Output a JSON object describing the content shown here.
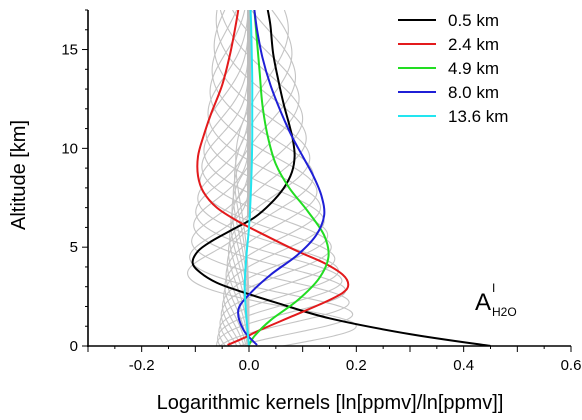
{
  "chart_data": {
    "type": "line",
    "xlabel": "Logarithmic kernels [ln[ppmv]/ln[ppmv]]",
    "ylabel": "Altitude [km]",
    "xlim": [
      -0.3,
      0.6
    ],
    "ylim": [
      0,
      17
    ],
    "x_ticks": [
      -0.2,
      0.0,
      0.2,
      0.4,
      0.6
    ],
    "x_tick_labels": [
      "-0.2",
      "0.0",
      "0.2",
      "0.4",
      "0.6"
    ],
    "y_ticks": [
      0,
      5,
      10,
      15
    ],
    "y_tick_labels": [
      "0",
      "5",
      "10",
      "15"
    ],
    "grid": false,
    "legend_position": "top-right",
    "annotation": {
      "main": "A",
      "superscript": "I",
      "subscript": "H2O"
    },
    "series": [
      {
        "name": "0.5 km",
        "color": "#000000",
        "points": [
          [
            0.45,
            0.0
          ],
          [
            0.3,
            0.6
          ],
          [
            0.15,
            1.4
          ],
          [
            0.05,
            2.2
          ],
          [
            -0.02,
            2.8
          ],
          [
            -0.06,
            3.2
          ],
          [
            -0.09,
            3.7
          ],
          [
            -0.105,
            4.2
          ],
          [
            -0.095,
            4.8
          ],
          [
            -0.07,
            5.3
          ],
          [
            -0.03,
            5.9
          ],
          [
            0.01,
            6.5
          ],
          [
            0.04,
            7.2
          ],
          [
            0.065,
            8.0
          ],
          [
            0.08,
            8.8
          ],
          [
            0.085,
            9.6
          ],
          [
            0.082,
            10.4
          ],
          [
            0.075,
            11.2
          ],
          [
            0.065,
            12.2
          ],
          [
            0.055,
            13.4
          ],
          [
            0.045,
            14.8
          ],
          [
            0.04,
            16.2
          ],
          [
            0.035,
            17.0
          ]
        ]
      },
      {
        "name": "2.4 km",
        "color": "#e31a1c",
        "points": [
          [
            -0.04,
            0.05
          ],
          [
            -0.01,
            0.4
          ],
          [
            0.02,
            0.8
          ],
          [
            0.08,
            1.5
          ],
          [
            0.14,
            2.2
          ],
          [
            0.175,
            2.7
          ],
          [
            0.185,
            3.1
          ],
          [
            0.175,
            3.6
          ],
          [
            0.14,
            4.2
          ],
          [
            0.09,
            4.8
          ],
          [
            0.03,
            5.6
          ],
          [
            -0.02,
            6.3
          ],
          [
            -0.06,
            7.0
          ],
          [
            -0.085,
            7.8
          ],
          [
            -0.095,
            8.6
          ],
          [
            -0.095,
            9.6
          ],
          [
            -0.085,
            10.6
          ],
          [
            -0.07,
            11.8
          ],
          [
            -0.05,
            13.2
          ],
          [
            -0.035,
            14.8
          ],
          [
            -0.025,
            16.2
          ],
          [
            -0.02,
            17.0
          ]
        ]
      },
      {
        "name": "4.9 km",
        "color": "#22dd22",
        "points": [
          [
            0.0,
            0.05
          ],
          [
            0.01,
            0.5
          ],
          [
            0.04,
            1.3
          ],
          [
            0.09,
            2.3
          ],
          [
            0.13,
            3.4
          ],
          [
            0.148,
            4.5
          ],
          [
            0.14,
            5.6
          ],
          [
            0.11,
            6.8
          ],
          [
            0.075,
            8.0
          ],
          [
            0.05,
            9.2
          ],
          [
            0.035,
            10.6
          ],
          [
            0.025,
            12.2
          ],
          [
            0.02,
            13.8
          ],
          [
            0.015,
            15.4
          ],
          [
            0.01,
            17.0
          ]
        ]
      },
      {
        "name": "8.0 km",
        "color": "#1f1fd6",
        "points": [
          [
            0.015,
            0.05
          ],
          [
            -0.01,
            0.8
          ],
          [
            -0.02,
            1.8
          ],
          [
            0.0,
            2.6
          ],
          [
            0.04,
            3.6
          ],
          [
            0.09,
            4.6
          ],
          [
            0.125,
            5.6
          ],
          [
            0.14,
            6.6
          ],
          [
            0.135,
            7.6
          ],
          [
            0.12,
            8.6
          ],
          [
            0.1,
            9.6
          ],
          [
            0.08,
            10.6
          ],
          [
            0.06,
            11.8
          ],
          [
            0.04,
            13.2
          ],
          [
            0.025,
            14.6
          ],
          [
            0.015,
            16.0
          ],
          [
            0.01,
            17.0
          ]
        ]
      },
      {
        "name": "13.6 km",
        "color": "#22e5f0",
        "points": [
          [
            0.0,
            0.0
          ],
          [
            -0.005,
            1.5
          ],
          [
            -0.008,
            3.0
          ],
          [
            -0.005,
            4.5
          ],
          [
            0.0,
            6.0
          ],
          [
            0.003,
            7.5
          ],
          [
            0.005,
            9.0
          ],
          [
            0.006,
            10.5
          ],
          [
            0.006,
            12.0
          ],
          [
            0.006,
            13.5
          ],
          [
            0.005,
            15.0
          ],
          [
            0.004,
            16.2
          ],
          [
            0.003,
            17.0
          ]
        ]
      }
    ]
  }
}
